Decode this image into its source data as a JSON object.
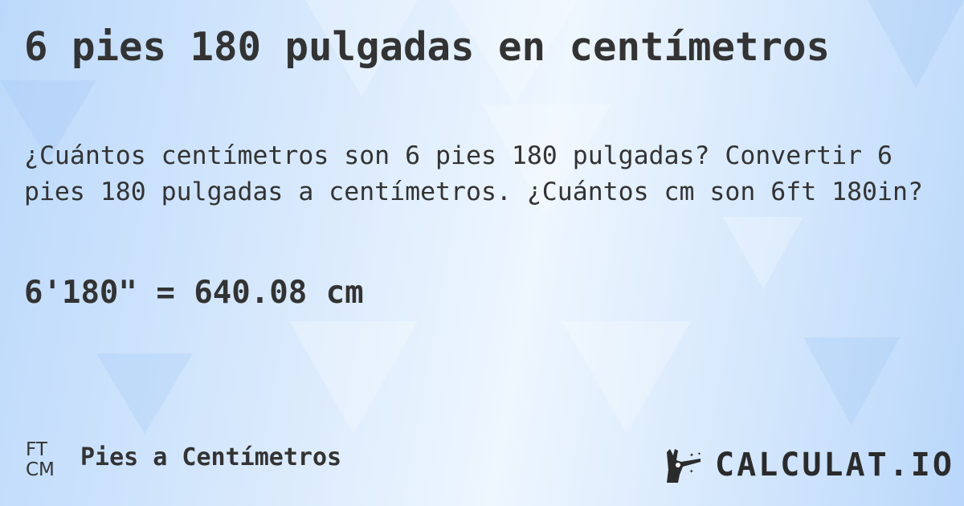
{
  "title": "6 pies 180 pulgadas en centímetros",
  "description": "¿Cuántos centímetros son 6 pies 180 pulgadas? Convertir 6 pies 180 pulgadas a centímetros. ¿Cuántos cm son 6ft 180in?",
  "result": "6'180\" = 640.08 cm",
  "footer": {
    "unit_from": "FT",
    "unit_to": "CM",
    "category": "Pies a Centímetros"
  },
  "logo": {
    "text": "CALCULAT.IO",
    "icon": "magic-wand-hand-icon"
  },
  "colors": {
    "background": "#d6e8fc",
    "text": "#333333"
  }
}
